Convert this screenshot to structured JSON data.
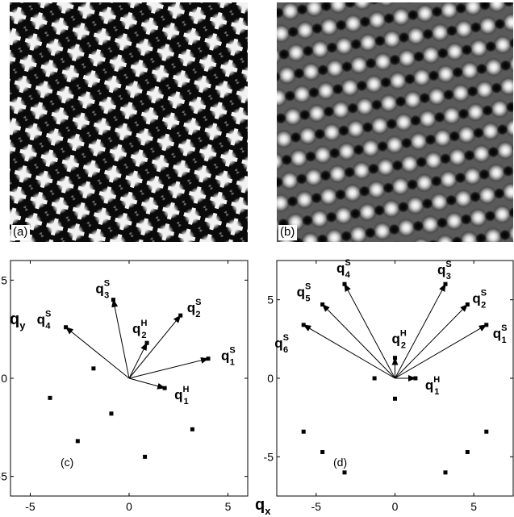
{
  "panels": {
    "a": {
      "label": "(a)"
    },
    "b": {
      "label": "(b)"
    }
  },
  "chart_data": [
    {
      "type": "scatter",
      "panel_label": "(c)",
      "xlim": [
        -6,
        6
      ],
      "ylim": [
        -6,
        6
      ],
      "xticks": [
        -5,
        0,
        5
      ],
      "yticks": [
        -5,
        0,
        5
      ],
      "xlabel": "",
      "ylabel": "q_y",
      "points": [
        {
          "x": 4.0,
          "y": 1.0
        },
        {
          "x": 2.6,
          "y": 3.2
        },
        {
          "x": -0.8,
          "y": 4.0
        },
        {
          "x": -3.2,
          "y": 2.6
        },
        {
          "x": 0.9,
          "y": 1.8
        },
        {
          "x": 1.8,
          "y": -0.5
        },
        {
          "x": -4.0,
          "y": -1.0
        },
        {
          "x": -2.6,
          "y": -3.2
        },
        {
          "x": 0.8,
          "y": -4.0
        },
        {
          "x": 3.2,
          "y": -2.6
        },
        {
          "x": -0.9,
          "y": -1.8
        },
        {
          "x": -1.8,
          "y": 0.5
        }
      ],
      "vectors": [
        {
          "x": 4.0,
          "y": 1.0,
          "base": "q",
          "sup": "S",
          "sub": "1"
        },
        {
          "x": 2.6,
          "y": 3.2,
          "base": "q",
          "sup": "S",
          "sub": "2"
        },
        {
          "x": -0.8,
          "y": 4.0,
          "base": "q",
          "sup": "S",
          "sub": "3"
        },
        {
          "x": -3.2,
          "y": 2.6,
          "base": "q",
          "sup": "S",
          "sub": "4"
        },
        {
          "x": 0.9,
          "y": 1.8,
          "base": "q",
          "sup": "H",
          "sub": "2"
        },
        {
          "x": 1.8,
          "y": -0.5,
          "base": "q",
          "sup": "H",
          "sub": "1"
        }
      ]
    },
    {
      "type": "scatter",
      "panel_label": "(d)",
      "xlim": [
        -7.5,
        7.5
      ],
      "ylim": [
        -7.5,
        7.5
      ],
      "xticks": [
        -5,
        0,
        5
      ],
      "yticks": [
        -5,
        0,
        5
      ],
      "xlabel": "q_x",
      "ylabel": "",
      "points": [
        {
          "x": 5.8,
          "y": 3.4
        },
        {
          "x": 4.6,
          "y": 4.7
        },
        {
          "x": 3.2,
          "y": 6.0
        },
        {
          "x": -3.2,
          "y": 6.0
        },
        {
          "x": -4.6,
          "y": 4.7
        },
        {
          "x": -5.8,
          "y": 3.4
        },
        {
          "x": 5.8,
          "y": -3.4
        },
        {
          "x": 4.6,
          "y": -4.7
        },
        {
          "x": 3.2,
          "y": -6.0
        },
        {
          "x": -3.2,
          "y": -6.0
        },
        {
          "x": -4.6,
          "y": -4.7
        },
        {
          "x": -5.8,
          "y": -3.4
        },
        {
          "x": 1.3,
          "y": 0.0
        },
        {
          "x": -1.3,
          "y": 0.0
        },
        {
          "x": 0.0,
          "y": 1.3
        },
        {
          "x": 0.0,
          "y": -1.3
        }
      ],
      "vectors": [
        {
          "x": 5.8,
          "y": 3.4,
          "base": "q",
          "sup": "S",
          "sub": "1"
        },
        {
          "x": 4.6,
          "y": 4.7,
          "base": "q",
          "sup": "S",
          "sub": "2"
        },
        {
          "x": 3.2,
          "y": 6.0,
          "base": "q",
          "sup": "S",
          "sub": "3"
        },
        {
          "x": -3.2,
          "y": 6.0,
          "base": "q",
          "sup": "S",
          "sub": "4"
        },
        {
          "x": -4.6,
          "y": 4.7,
          "base": "q",
          "sup": "S",
          "sub": "5"
        },
        {
          "x": -5.8,
          "y": 3.4,
          "base": "q",
          "sup": "S",
          "sub": "6"
        },
        {
          "x": 0.0,
          "y": 1.3,
          "base": "q",
          "sup": "H",
          "sub": "2"
        },
        {
          "x": 1.3,
          "y": 0.0,
          "base": "q",
          "sup": "H",
          "sub": "1"
        }
      ]
    }
  ]
}
